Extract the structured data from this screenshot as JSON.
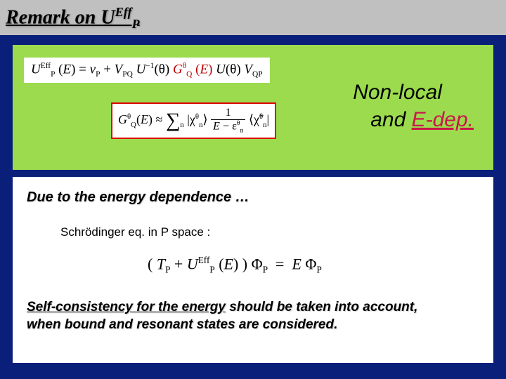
{
  "title": {
    "prefix": "Remark on ",
    "U": "U",
    "sup": "Eff",
    "sub": "P"
  },
  "greenPanel": {
    "eq1_html": "<span class='ital'>U</span><span class='ssup'>Eff</span><span class='ssub'>P</span> (<span class='ital'>E</span>) = <span class='ital'>v</span><span class='ssub'>P</span> + <span class='ital'>V</span><span class='ssub'>PQ</span> <span class='ital'>U</span><span class='ssup'>−1</span>(θ) <span class='ital' style='color:#b00'>G</span><span class='ssup' style='color:#b00'>θ</span><span class='ssub' style='color:#b00'>Q</span> <span style='color:#b00'>(<span class='ital'>E</span>)</span> <span class='ital'>U</span>(θ) <span class='ital'>V</span><span class='ssub'>QP</span>",
    "eq2_html": "<span class='ital'>G</span><span class='ssup'>θ</span><span class='ssub'>Q</span>(<span class='ital'>E</span>) ≈ <span class='bigop'>∑</span><span class='ssub'>n</span> <span class='angle'>|χ</span><span class='ssup'>θ</span><span class='ssub'>n</span><span class='angle'>⟩</span> <span class='frac'><span class='num'>1</span><span class='den'><span class='ital'>E</span> − ε<span class='ssup'>θ</span><span class='ssub'>n</span></span></span> <span class='angle'>⟨χ̃</span><span class='ssup'>θ</span><span class='ssub'>n</span><span class='angle'>|</span>",
    "nonlocal_line1": "Non-local",
    "nonlocal_line2_prefix": "and ",
    "nonlocal_line2_edep": "E-dep."
  },
  "whitePanel": {
    "due": "Due to the energy dependence …",
    "schrod": "Schrödinger eq. in P space :",
    "eq3_html": "( <span class='ital'>T</span><span class='ssub'>P</span> + <span class='ital'>U</span><span class='ssup'>Eff</span><span class='ssub'>P</span> (<span class='ital'>E</span>) ) Φ<span class='ssub'>P</span> &nbsp;=&nbsp; <span class='ital'>E</span> Φ<span class='ssub'>P</span>",
    "self_ul": "Self-consistency for the energy",
    "self_rest1": " should be taken into account,",
    "self_line2": "when bound and resonant states are considered."
  },
  "colors": {
    "background": "#0a1f7a",
    "titleBar": "#c0c0c0",
    "greenPanel": "#9bdb4d",
    "redBorder": "#d00",
    "edepColor": "#c9184a"
  }
}
